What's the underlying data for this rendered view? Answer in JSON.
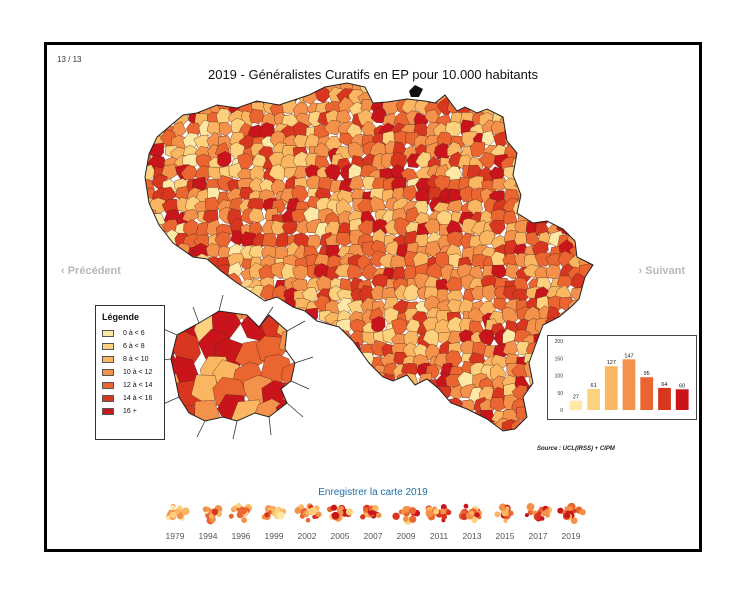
{
  "page": {
    "counter": "13 / 13",
    "title": "2019 - Généralistes Curatifs en EP pour 10.000 habitants",
    "prev_label": "‹ Précédent",
    "next_label": "› Suivant",
    "save_link": "Enregistrer la carte 2019",
    "source": "Source : UCL(IRSS) + CIPM"
  },
  "legend": {
    "title": "Légende",
    "classes": [
      {
        "label": "0 à < 6",
        "color": "#fde8a6"
      },
      {
        "label": "6 à < 8",
        "color": "#fdd17e"
      },
      {
        "label": "8 à < 10",
        "color": "#fbb662"
      },
      {
        "label": "10 à < 12",
        "color": "#f4914a"
      },
      {
        "label": "12 à < 14",
        "color": "#ea6530"
      },
      {
        "label": "14 à < 16",
        "color": "#d8361e"
      },
      {
        "label": "16 +",
        "color": "#c8141a"
      }
    ]
  },
  "chart_data": {
    "type": "bar",
    "categories": [
      "0 à < 6",
      "6 à < 8",
      "8 à < 10",
      "10 à < 12",
      "12 à < 14",
      "14 à < 16",
      "16 +"
    ],
    "values": [
      27,
      61,
      127,
      147,
      95,
      64,
      60
    ],
    "ylim": [
      0,
      200
    ],
    "yticks": [
      0,
      50,
      100,
      150,
      200
    ],
    "colors": [
      "#fde8a6",
      "#fdd17e",
      "#fbb662",
      "#f4914a",
      "#ea6530",
      "#d8361e",
      "#c8141a"
    ]
  },
  "timeline": {
    "years": [
      "1979",
      "1994",
      "1996",
      "1999",
      "2002",
      "2005",
      "2007",
      "2009",
      "2011",
      "2013",
      "2015",
      "2017",
      "2019"
    ]
  }
}
